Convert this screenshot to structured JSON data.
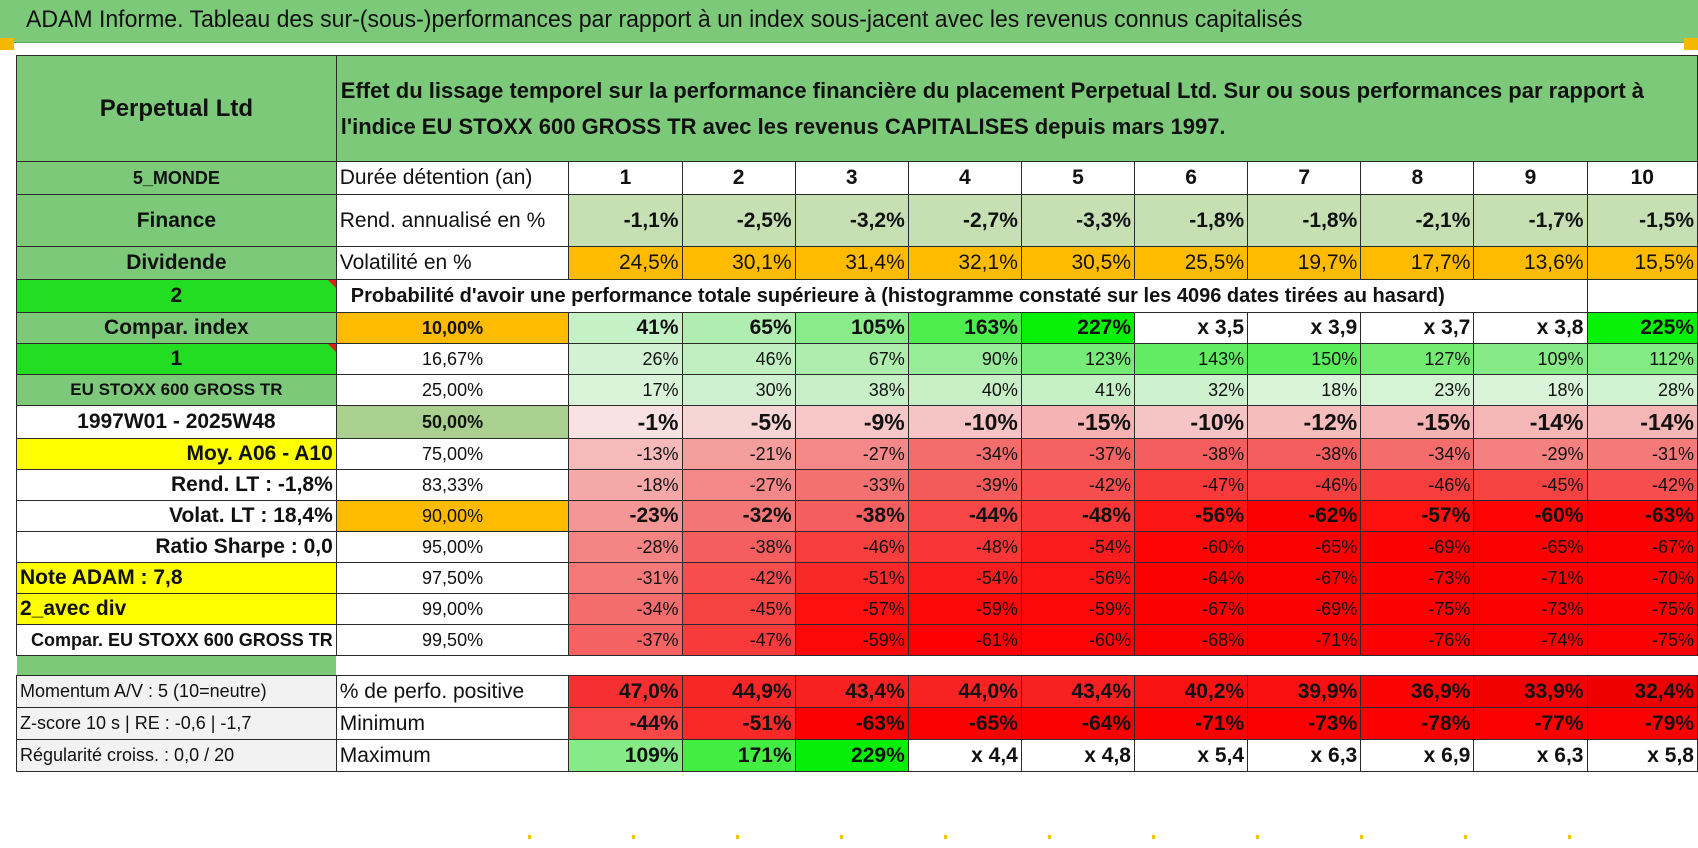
{
  "title": "ADAM Informe. Tableau des sur-(sous-)performances par rapport à un index sous-jacent avec les revenus connus capitalisés",
  "fund_name": "Perpetual Ltd",
  "header_text_line1": "Effet du lissage temporel sur la performance financière du placement Perpetual Ltd. Sur ou sous performances par rapport à",
  "header_text_line2": "l'indice EU STOXX 600 GROSS TR avec les revenus CAPITALISES depuis mars 1997.",
  "left_labels": {
    "zone": "5_MONDE",
    "sector": "Finance",
    "type": "Dividende",
    "sel2": "2",
    "compar": "Compar. index",
    "sel1": "1",
    "index": "EU STOXX 600 GROSS TR",
    "period": "1997W01 - 2025W48",
    "moy": "Moy. A06 - A10",
    "rend_lt": "Rend. LT :    -1,8%",
    "volat_lt": "Volat. LT :    18,4%",
    "sharpe": "Ratio Sharpe :     0,0",
    "note": "Note ADAM : 7,8",
    "avec_div": "2_avec div",
    "compar_index": "Compar. EU STOXX 600 GROSS TR"
  },
  "duree_label": "Durée détention (an)",
  "years": [
    "1",
    "2",
    "3",
    "4",
    "5",
    "6",
    "7",
    "8",
    "9",
    "10"
  ],
  "rend_label": "Rend. annualisé en %",
  "rend": [
    "-1,1%",
    "-2,5%",
    "-3,2%",
    "-2,7%",
    "-3,3%",
    "-1,8%",
    "-1,8%",
    "-2,1%",
    "-1,7%",
    "-1,5%"
  ],
  "vol_label": "Volatilité en %",
  "vol": [
    "24,5%",
    "30,1%",
    "31,4%",
    "32,1%",
    "30,5%",
    "25,5%",
    "19,7%",
    "17,7%",
    "13,6%",
    "15,5%"
  ],
  "proba_label": "Probabilité d'avoir une performance totale supérieure à (histogramme constaté sur les 4096 dates tirées au hasard)",
  "prob_rows": [
    {
      "pct": "10,00%",
      "vals": [
        "41%",
        "65%",
        "105%",
        "163%",
        "227%",
        "x 3,5",
        "x 3,9",
        "x 3,7",
        "x 3,8",
        "225%"
      ]
    },
    {
      "pct": "16,67%",
      "vals": [
        "26%",
        "46%",
        "67%",
        "90%",
        "123%",
        "143%",
        "150%",
        "127%",
        "109%",
        "112%"
      ]
    },
    {
      "pct": "25,00%",
      "vals": [
        "17%",
        "30%",
        "38%",
        "40%",
        "41%",
        "32%",
        "18%",
        "23%",
        "18%",
        "28%"
      ]
    },
    {
      "pct": "50,00%",
      "vals": [
        "-1%",
        "-5%",
        "-9%",
        "-10%",
        "-15%",
        "-10%",
        "-12%",
        "-15%",
        "-14%",
        "-14%"
      ]
    },
    {
      "pct": "75,00%",
      "vals": [
        "-13%",
        "-21%",
        "-27%",
        "-34%",
        "-37%",
        "-38%",
        "-38%",
        "-34%",
        "-29%",
        "-31%"
      ]
    },
    {
      "pct": "83,33%",
      "vals": [
        "-18%",
        "-27%",
        "-33%",
        "-39%",
        "-42%",
        "-47%",
        "-46%",
        "-46%",
        "-45%",
        "-42%"
      ]
    },
    {
      "pct": "90,00%",
      "vals": [
        "-23%",
        "-32%",
        "-38%",
        "-44%",
        "-48%",
        "-56%",
        "-62%",
        "-57%",
        "-60%",
        "-63%"
      ]
    },
    {
      "pct": "95,00%",
      "vals": [
        "-28%",
        "-38%",
        "-46%",
        "-48%",
        "-54%",
        "-60%",
        "-65%",
        "-69%",
        "-65%",
        "-67%"
      ]
    },
    {
      "pct": "97,50%",
      "vals": [
        "-31%",
        "-42%",
        "-51%",
        "-54%",
        "-56%",
        "-64%",
        "-67%",
        "-73%",
        "-71%",
        "-70%"
      ]
    },
    {
      "pct": "99,00%",
      "vals": [
        "-34%",
        "-45%",
        "-57%",
        "-59%",
        "-59%",
        "-67%",
        "-69%",
        "-75%",
        "-73%",
        "-75%"
      ]
    },
    {
      "pct": "99,50%",
      "vals": [
        "-37%",
        "-47%",
        "-59%",
        "-61%",
        "-60%",
        "-68%",
        "-71%",
        "-76%",
        "-74%",
        "-75%"
      ]
    }
  ],
  "stats": {
    "momentum_label": "Momentum A/V : 5 (10=neutre)",
    "zscore_label": "Z-score 10 s | RE : -0,6 | -1,7",
    "regul_label": "Régularité croiss. : 0,0 / 20",
    "pos_label": "% de perfo. positive",
    "pos": [
      "47,0%",
      "44,9%",
      "43,4%",
      "44,0%",
      "43,4%",
      "40,2%",
      "39,9%",
      "36,9%",
      "33,9%",
      "32,4%"
    ],
    "min_label": "Minimum",
    "min": [
      "-44%",
      "-51%",
      "-63%",
      "-65%",
      "-64%",
      "-71%",
      "-73%",
      "-78%",
      "-77%",
      "-79%"
    ],
    "max_label": "Maximum",
    "max": [
      "109%",
      "171%",
      "229%",
      "x 4,4",
      "x 4,8",
      "x 5,4",
      "x 6,3",
      "x 6,9",
      "x 6,3",
      "x 5,8"
    ]
  },
  "colors": {
    "header_green": "#7dc97a",
    "rend_bg": "#c6e0b4",
    "vol_bg": "#ffbb00",
    "highlight_yellow": "#ffff00",
    "label_red": "#e21b1b"
  }
}
